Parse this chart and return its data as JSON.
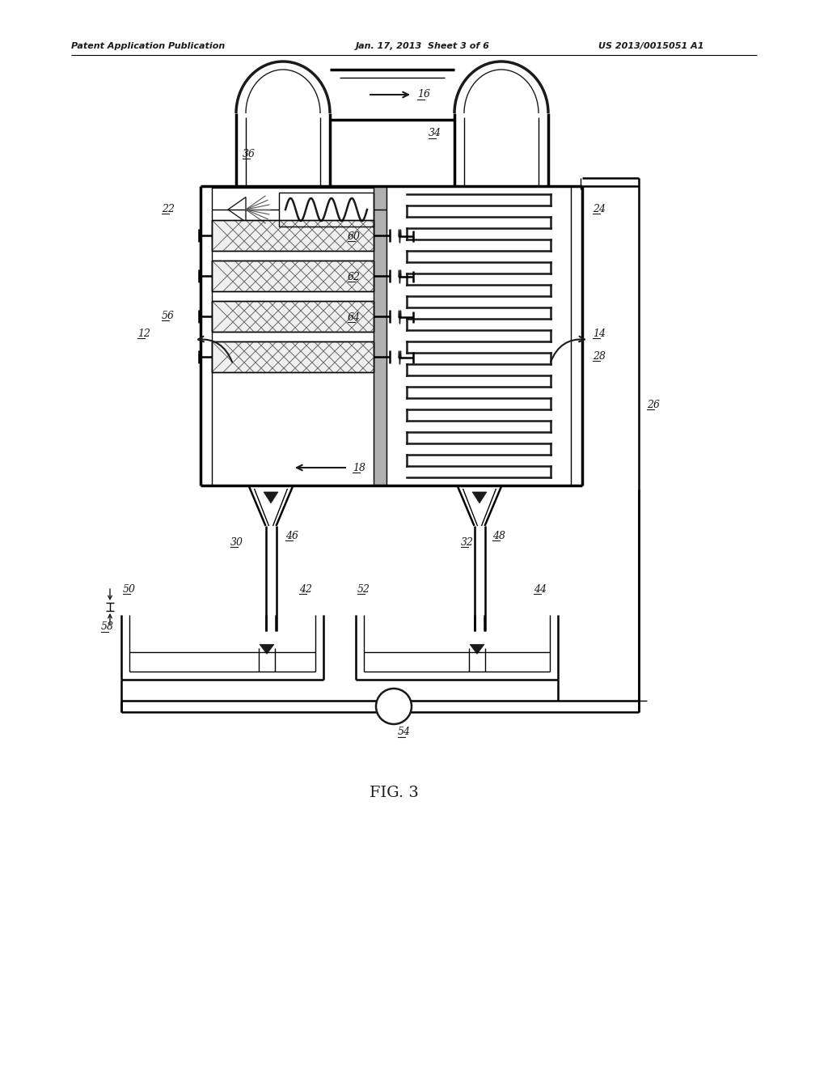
{
  "title": "FIG. 3",
  "header_left": "Patent Application Publication",
  "header_center": "Jan. 17, 2013  Sheet 3 of 6",
  "header_right": "US 2013/0015051 A1",
  "bg_color": "#ffffff",
  "line_color": "#1a1a1a"
}
